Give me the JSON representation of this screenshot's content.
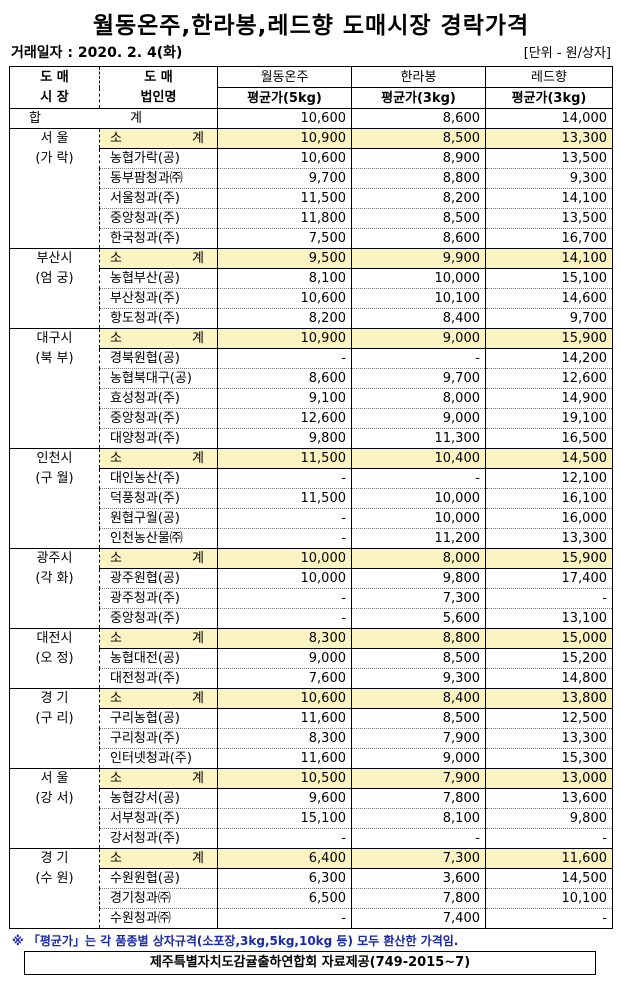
{
  "title": "월동온주,한라봉,레드향 도매시장 경락가격",
  "date_label": "거래일자 : 2020. 2. 4(화)",
  "unit_label": "[단위 - 원/상자]",
  "header": {
    "market": [
      "도 매",
      "시 장"
    ],
    "company": [
      "도 매",
      "법인명"
    ],
    "products": [
      "월동온주",
      "한라봉",
      "레드향"
    ],
    "price_labels": [
      "평균가(5kg)",
      "평균가(3kg)",
      "평균가(3kg)"
    ]
  },
  "total": {
    "label_a": "합",
    "label_b": "계",
    "values": [
      "10,600",
      "8,600",
      "14,000"
    ]
  },
  "subtotal_label": [
    "소",
    "계"
  ],
  "colors": {
    "subtotal_bg": "#fbf3c1",
    "note": "#1a2aa0"
  },
  "groups": [
    {
      "market": [
        "서 울",
        "(가 락)"
      ],
      "subtotal": [
        "10,900",
        "8,500",
        "13,300"
      ],
      "rows": [
        {
          "name": "농협가락(공)",
          "values": [
            "10,600",
            "8,900",
            "13,500"
          ]
        },
        {
          "name": "동부팜청과㈜",
          "values": [
            "9,700",
            "8,800",
            "9,300"
          ]
        },
        {
          "name": "서울청과(주)",
          "values": [
            "11,500",
            "8,200",
            "14,100"
          ]
        },
        {
          "name": "중앙청과(주)",
          "values": [
            "11,800",
            "8,500",
            "13,500"
          ]
        },
        {
          "name": "한국청과(주)",
          "values": [
            "7,500",
            "8,600",
            "16,700"
          ]
        }
      ]
    },
    {
      "market": [
        "부산시",
        "(엄 궁)"
      ],
      "subtotal": [
        "9,500",
        "9,900",
        "14,100"
      ],
      "rows": [
        {
          "name": "농협부산(공)",
          "values": [
            "8,100",
            "10,000",
            "15,100"
          ]
        },
        {
          "name": "부산청과(주)",
          "values": [
            "10,600",
            "10,100",
            "14,600"
          ]
        },
        {
          "name": "항도청과(주)",
          "values": [
            "8,200",
            "8,400",
            "9,700"
          ]
        }
      ]
    },
    {
      "market": [
        "대구시",
        "(북 부)"
      ],
      "subtotal": [
        "10,900",
        "9,000",
        "15,900"
      ],
      "rows": [
        {
          "name": "경북원협(공)",
          "values": [
            "-",
            "-",
            "14,200"
          ]
        },
        {
          "name": "농협북대구(공)",
          "values": [
            "8,600",
            "9,700",
            "12,600"
          ]
        },
        {
          "name": "효성청과(주)",
          "values": [
            "9,100",
            "8,000",
            "14,900"
          ]
        },
        {
          "name": "중앙청과(주)",
          "values": [
            "12,600",
            "9,000",
            "19,100"
          ]
        },
        {
          "name": "대양청과(주)",
          "values": [
            "9,800",
            "11,300",
            "16,500"
          ]
        }
      ]
    },
    {
      "market": [
        "인천시",
        "(구 월)"
      ],
      "subtotal": [
        "11,500",
        "10,400",
        "14,500"
      ],
      "rows": [
        {
          "name": "대인농산(주)",
          "values": [
            "-",
            "-",
            "12,100"
          ]
        },
        {
          "name": "덕풍청과(주)",
          "values": [
            "11,500",
            "10,000",
            "16,100"
          ]
        },
        {
          "name": "원협구월(공)",
          "values": [
            "-",
            "10,000",
            "16,000"
          ]
        },
        {
          "name": "인천농산물㈜",
          "values": [
            "-",
            "11,200",
            "13,300"
          ]
        }
      ]
    },
    {
      "market": [
        "광주시",
        "(각 화)"
      ],
      "subtotal": [
        "10,000",
        "8,000",
        "15,900"
      ],
      "rows": [
        {
          "name": "광주원협(공)",
          "values": [
            "10,000",
            "9,800",
            "17,400"
          ]
        },
        {
          "name": "광주청과(주)",
          "values": [
            "-",
            "7,300",
            "-"
          ]
        },
        {
          "name": "중앙청과(주)",
          "values": [
            "-",
            "5,600",
            "13,100"
          ]
        }
      ]
    },
    {
      "market": [
        "대전시",
        "(오 정)"
      ],
      "subtotal": [
        "8,300",
        "8,800",
        "15,000"
      ],
      "rows": [
        {
          "name": "농협대전(공)",
          "values": [
            "9,000",
            "8,500",
            "15,200"
          ]
        },
        {
          "name": "대전청과(주)",
          "values": [
            "7,600",
            "9,300",
            "14,800"
          ]
        }
      ]
    },
    {
      "market": [
        "경 기",
        "(구 리)"
      ],
      "subtotal": [
        "10,600",
        "8,400",
        "13,800"
      ],
      "rows": [
        {
          "name": "구리농협(공)",
          "values": [
            "11,600",
            "8,500",
            "12,500"
          ]
        },
        {
          "name": "구리청과(주)",
          "values": [
            "8,300",
            "7,900",
            "13,300"
          ]
        },
        {
          "name": "인터넷청과(주)",
          "values": [
            "11,600",
            "9,000",
            "15,300"
          ]
        }
      ]
    },
    {
      "market": [
        "서 울",
        "(강 서)"
      ],
      "subtotal": [
        "10,500",
        "7,900",
        "13,000"
      ],
      "rows": [
        {
          "name": "농협강서(공)",
          "values": [
            "9,600",
            "7,800",
            "13,600"
          ]
        },
        {
          "name": "서부청과(주)",
          "values": [
            "15,100",
            "8,100",
            "9,800"
          ]
        },
        {
          "name": "강서청과(주)",
          "values": [
            "-",
            "-",
            "-"
          ]
        }
      ]
    },
    {
      "market": [
        "경 기",
        "(수 원)"
      ],
      "subtotal": [
        "6,400",
        "7,300",
        "11,600"
      ],
      "rows": [
        {
          "name": "수원원협(공)",
          "values": [
            "6,300",
            "3,600",
            "14,500"
          ]
        },
        {
          "name": "경기청과㈜",
          "values": [
            "6,500",
            "7,800",
            "10,100"
          ]
        },
        {
          "name": "수원청과㈜",
          "values": [
            "-",
            "7,400",
            "-"
          ]
        }
      ]
    }
  ],
  "note": "※ 「평균가」는 각 품종별 상자규격(소포장,3kg,5kg,10kg 등) 모두 환산한 가격임.",
  "source": "제주특별자치도감귤출하연합회 자료제공(749-2015~7)"
}
